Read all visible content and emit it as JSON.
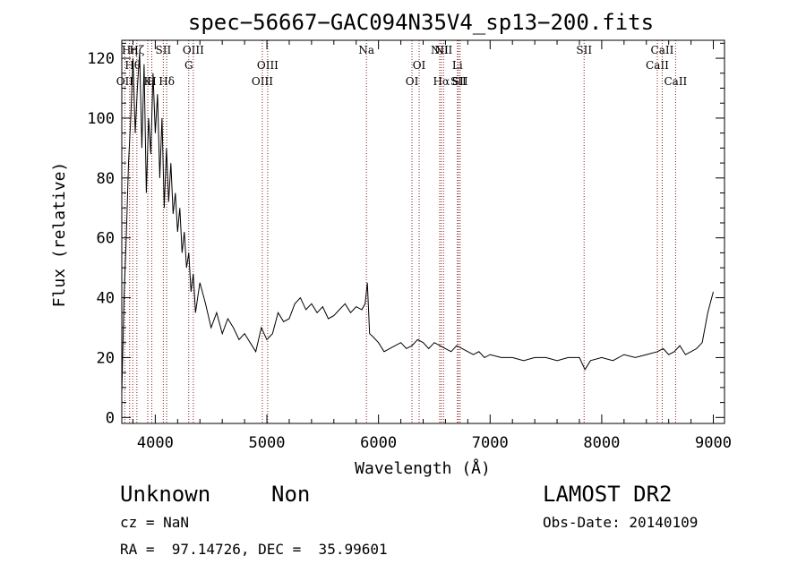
{
  "chart_data": {
    "type": "line",
    "title": "spec−56667−GAC094N35V4_sp13−200.fits",
    "xlabel": "Wavelength (Å)",
    "ylabel": "Flux (relative)",
    "xlim": [
      3700,
      9100
    ],
    "ylim": [
      -2,
      126
    ],
    "x_ticks": [
      4000,
      5000,
      6000,
      7000,
      8000,
      9000
    ],
    "x_tick_labels": [
      "4000",
      "5000",
      "6000",
      "7000",
      "8000",
      "9000"
    ],
    "y_ticks": [
      0,
      20,
      40,
      60,
      80,
      100,
      120
    ],
    "y_tick_labels": [
      "0",
      "20",
      "40",
      "60",
      "80",
      "100",
      "120"
    ],
    "grid": false,
    "line_color": "#000000",
    "series": [
      {
        "x": [
          3700,
          3720,
          3740,
          3760,
          3780,
          3800,
          3820,
          3840,
          3860,
          3880,
          3900,
          3920,
          3940,
          3960,
          3980,
          4000,
          4020,
          4040,
          4060,
          4080,
          4100,
          4120,
          4140,
          4160,
          4180,
          4200,
          4220,
          4240,
          4260,
          4280,
          4300,
          4320,
          4340,
          4360,
          4380,
          4400,
          4450,
          4500,
          4550,
          4600,
          4650,
          4700,
          4750,
          4800,
          4850,
          4900,
          4950,
          5000,
          5050,
          5100,
          5150,
          5200,
          5250,
          5300,
          5350,
          5400,
          5450,
          5500,
          5550,
          5600,
          5650,
          5700,
          5750,
          5800,
          5850,
          5880,
          5900,
          5920,
          5950,
          6000,
          6050,
          6100,
          6150,
          6200,
          6250,
          6300,
          6350,
          6400,
          6450,
          6500,
          6550,
          6600,
          6650,
          6700,
          6750,
          6800,
          6850,
          6900,
          6950,
          7000,
          7100,
          7200,
          7300,
          7400,
          7500,
          7600,
          7700,
          7800,
          7850,
          7900,
          8000,
          8100,
          8200,
          8300,
          8400,
          8500,
          8550,
          8600,
          8650,
          8700,
          8750,
          8800,
          8850,
          8900,
          8950,
          9000
        ],
        "y": [
          8,
          40,
          60,
          85,
          100,
          120,
          95,
          110,
          122,
          90,
          118,
          75,
          100,
          88,
          115,
          95,
          108,
          80,
          100,
          70,
          90,
          72,
          85,
          68,
          75,
          62,
          70,
          55,
          62,
          50,
          55,
          42,
          48,
          35,
          40,
          45,
          38,
          30,
          35,
          28,
          33,
          30,
          26,
          28,
          25,
          22,
          30,
          26,
          28,
          35,
          32,
          33,
          38,
          40,
          36,
          38,
          35,
          37,
          33,
          34,
          36,
          38,
          35,
          37,
          36,
          38,
          45,
          28,
          27,
          25,
          22,
          23,
          24,
          25,
          23,
          24,
          26,
          25,
          23,
          25,
          24,
          23,
          22,
          24,
          23,
          22,
          21,
          22,
          20,
          21,
          20,
          20,
          19,
          20,
          20,
          19,
          20,
          20,
          16,
          19,
          20,
          19,
          21,
          20,
          21,
          22,
          23,
          21,
          22,
          24,
          21,
          22,
          23,
          25,
          35,
          42
        ]
      }
    ],
    "line_annotations": [
      {
        "x": 3727,
        "label": "OII",
        "row": 2
      },
      {
        "x": 3770,
        "label": "Hη",
        "row": 0
      },
      {
        "x": 3798,
        "label": "Hθ",
        "row": 1
      },
      {
        "x": 3835,
        "label": "Hζ",
        "row": 0
      },
      {
        "x": 3933,
        "label": "K",
        "row": 2
      },
      {
        "x": 3969,
        "label": "H",
        "row": 2
      },
      {
        "x": 4072,
        "label": "SII",
        "row": 0
      },
      {
        "x": 4102,
        "label": "Hδ",
        "row": 2
      },
      {
        "x": 4300,
        "label": "G",
        "row": 1
      },
      {
        "x": 4341,
        "label": "OIII",
        "row": 0
      },
      {
        "x": 4959,
        "label": "OIII",
        "row": 2
      },
      {
        "x": 5007,
        "label": "OIII",
        "row": 1
      },
      {
        "x": 5892,
        "label": "Na",
        "row": 0
      },
      {
        "x": 6300,
        "label": "OI",
        "row": 2
      },
      {
        "x": 6364,
        "label": "OI",
        "row": 1
      },
      {
        "x": 6548,
        "label": "NII",
        "row": 0
      },
      {
        "x": 6563,
        "label": "Hα",
        "row": 2
      },
      {
        "x": 6583,
        "label": "NII",
        "row": 0
      },
      {
        "x": 6707,
        "label": "Li",
        "row": 1
      },
      {
        "x": 6716,
        "label": "SII",
        "row": 2
      },
      {
        "x": 6731,
        "label": "SII",
        "row": 2
      },
      {
        "x": 7842,
        "label": "SII",
        "row": 0
      },
      {
        "x": 8498,
        "label": "CaII",
        "row": 1
      },
      {
        "x": 8542,
        "label": "CaII",
        "row": 0
      },
      {
        "x": 8662,
        "label": "CaII",
        "row": 2
      }
    ]
  },
  "info": {
    "class": "Unknown",
    "subclass": "Non",
    "survey": "LAMOST DR2",
    "cz": "cz = NaN",
    "obs_date": "Obs-Date: 20140109",
    "radec": "RA =  97.14726, DEC =  35.99601"
  }
}
